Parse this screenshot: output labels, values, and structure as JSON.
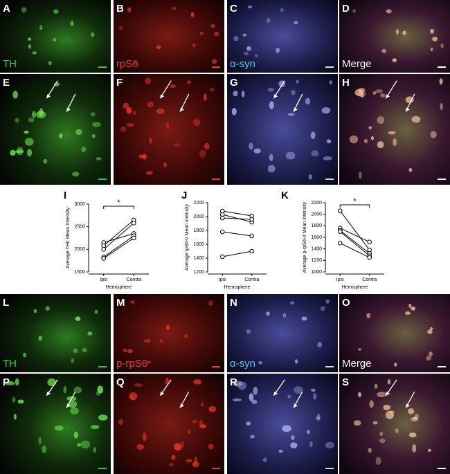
{
  "panels": [
    {
      "letter": "A",
      "label": "TH"
    },
    {
      "letter": "B",
      "label": "rpS6"
    },
    {
      "letter": "C",
      "label": "α-syn"
    },
    {
      "letter": "D",
      "label": "Merge"
    },
    {
      "letter": "E"
    },
    {
      "letter": "F"
    },
    {
      "letter": "G"
    },
    {
      "letter": "H"
    },
    {
      "letter": "L",
      "label": "TH"
    },
    {
      "letter": "M",
      "label": "p-rpS6"
    },
    {
      "letter": "N",
      "label": "α-syn"
    },
    {
      "letter": "O",
      "label": "Merge"
    },
    {
      "letter": "P"
    },
    {
      "letter": "Q"
    },
    {
      "letter": "R"
    },
    {
      "letter": "S"
    }
  ],
  "chart_data": [
    {
      "type": "line",
      "panel": "I",
      "y_label": "Average THir Mean Intensity",
      "x_label": "Hemisphere",
      "annotation": "*",
      "categories": [
        "Ipsi",
        "Contra"
      ],
      "ylim": [
        1500,
        3000
      ],
      "yticks": [
        1500,
        2000,
        2500,
        3000
      ],
      "series": [
        {
          "color": "#000000",
          "values": [
            2150,
            2350
          ]
        },
        {
          "color": "#000000",
          "values": [
            2080,
            2650
          ]
        },
        {
          "color": "#000000",
          "values": [
            2000,
            2580
          ]
        },
        {
          "color": "#000000",
          "values": [
            1830,
            2300
          ]
        },
        {
          "color": "#000000",
          "values": [
            1800,
            2250
          ]
        }
      ]
    },
    {
      "type": "line",
      "panel": "J",
      "y_label": "Average rpS6-ir Mean Intensity",
      "x_label": "Hemisphere",
      "categories": [
        "Ipsi",
        "Contra"
      ],
      "ylim": [
        1200,
        2200
      ],
      "yticks": [
        1200,
        1400,
        1600,
        1800,
        2000,
        2200
      ],
      "series": [
        {
          "color": "#000000",
          "values": [
            2080,
            2010
          ]
        },
        {
          "color": "#000000",
          "values": [
            2030,
            1920
          ]
        },
        {
          "color": "#000000",
          "values": [
            1980,
            1960
          ]
        },
        {
          "color": "#000000",
          "values": [
            1780,
            1720
          ]
        },
        {
          "color": "#000000",
          "values": [
            1420,
            1500
          ]
        }
      ]
    },
    {
      "type": "line",
      "panel": "K",
      "y_label": "Average p-rpS6-ir Mean Intensity",
      "x_label": "Hemisphere",
      "annotation": "*",
      "categories": [
        "Ipsi",
        "Contra"
      ],
      "ylim": [
        1000,
        2200
      ],
      "yticks": [
        1000,
        1200,
        1400,
        1600,
        1800,
        2000,
        2200
      ],
      "series": [
        {
          "color": "#000000",
          "values": [
            2060,
            1380
          ]
        },
        {
          "color": "#000000",
          "values": [
            1760,
            1520
          ]
        },
        {
          "color": "#000000",
          "values": [
            1720,
            1320
          ]
        },
        {
          "color": "#000000",
          "values": [
            1700,
            1280
          ]
        },
        {
          "color": "#000000",
          "values": [
            1500,
            1250
          ]
        }
      ]
    }
  ]
}
